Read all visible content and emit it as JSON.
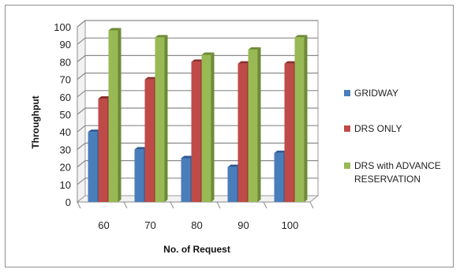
{
  "chart_data": {
    "type": "bar",
    "title": "",
    "xlabel": "No. of Request",
    "ylabel": "Throughput",
    "ylim": [
      0,
      100
    ],
    "yticks": [
      0,
      10,
      20,
      30,
      40,
      50,
      60,
      70,
      80,
      90,
      100
    ],
    "categories": [
      "60",
      "70",
      "80",
      "90",
      "100"
    ],
    "series": [
      {
        "name": "GRIDWAY",
        "values": [
          40,
          30,
          25,
          20,
          28
        ],
        "color": "#4a7ebb",
        "top_color": "#2c5a94"
      },
      {
        "name": "DRS ONLY",
        "values": [
          59,
          70,
          80,
          79,
          79
        ],
        "color": "#be4b48",
        "top_color": "#8c2f2d"
      },
      {
        "name": "DRS with ADVANCE RESERVATION",
        "legend_lines": [
          "DRS with ADVANCE",
          "RESERVATION"
        ],
        "values": [
          98,
          94,
          84,
          87,
          94
        ],
        "color": "#98b954",
        "top_color": "#6d8a36"
      }
    ],
    "grid": true,
    "legend_position": "right",
    "style": "3d-clustered-column"
  }
}
